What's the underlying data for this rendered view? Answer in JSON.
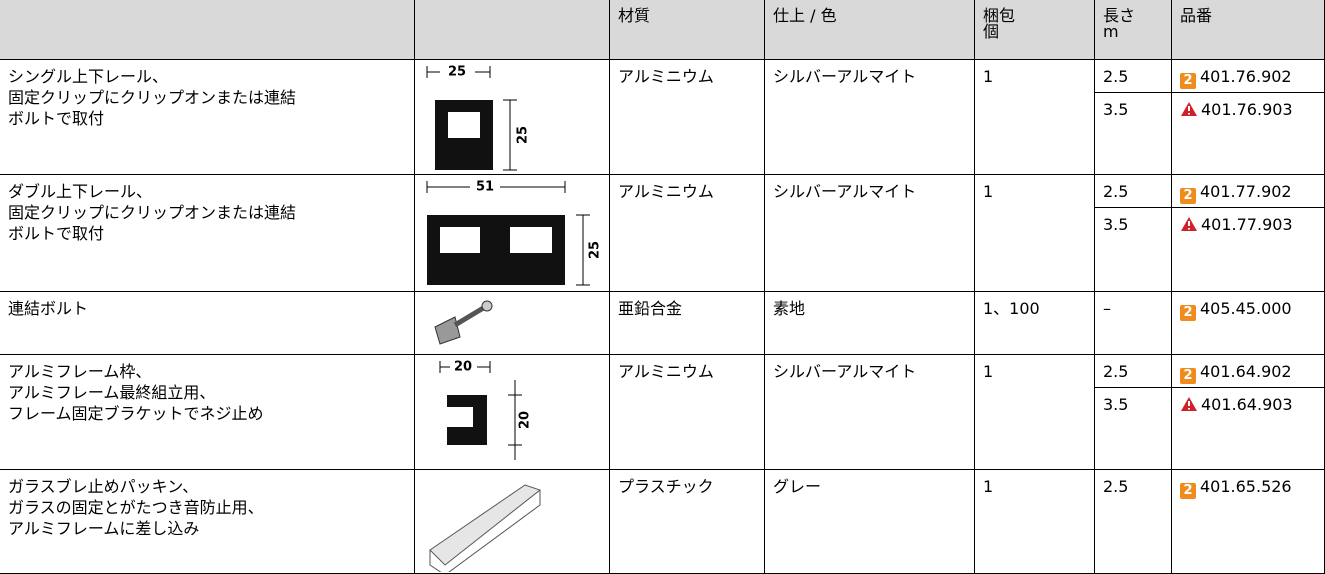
{
  "table": {
    "header": [
      "",
      "",
      "材質",
      "仕上 / 色",
      "梱包\n個",
      "長さ\nm",
      "品番"
    ],
    "rows": [
      {
        "description": "シングル上下レール、\n固定クリップにクリップオンまたは連結\nボルトで取付",
        "dims": [
          "25",
          "25"
        ],
        "material": "アルミニウム",
        "finish": "シルバーアルマイト",
        "pack": "1",
        "variants": [
          {
            "length": "2.5",
            "badge": "2",
            "part": "401.76.902"
          },
          {
            "length": "3.5",
            "warning": true,
            "part": "401.76.903"
          }
        ]
      },
      {
        "description": "ダブル上下レール、\n固定クリップにクリップオンまたは連結\nボルトで取付",
        "dims": [
          "51",
          "25"
        ],
        "material": "アルミニウム",
        "finish": "シルバーアルマイト",
        "pack": "1",
        "variants": [
          {
            "length": "2.5",
            "badge": "2",
            "part": "401.77.902"
          },
          {
            "length": "3.5",
            "warning": true,
            "part": "401.77.903"
          }
        ]
      },
      {
        "description": "連結ボルト",
        "dims": [],
        "material": "亜鉛合金",
        "finish": "素地",
        "pack": "1、100",
        "variants": [
          {
            "length": "–",
            "badge": "2",
            "part": "405.45.000"
          }
        ]
      },
      {
        "description": "アルミフレーム枠、\nアルミフレーム最終組立用、\nフレーム固定ブラケットでネジ止め",
        "dims": [
          "20",
          "20"
        ],
        "material": "アルミニウム",
        "finish": "シルバーアルマイト",
        "pack": "1",
        "variants": [
          {
            "length": "2.5",
            "badge": "2",
            "part": "401.64.902"
          },
          {
            "length": "3.5",
            "warning": true,
            "part": "401.64.903"
          }
        ]
      },
      {
        "description": "ガラスブレ止めパッキン、\nガラスの固定とがたつき音防止用、\nアルミフレームに差し込み",
        "dims": [],
        "material": "プラスチック",
        "finish": "グレー",
        "pack": "1",
        "variants": [
          {
            "length": "2.5",
            "badge": "2",
            "part": "401.65.526"
          }
        ]
      }
    ]
  }
}
